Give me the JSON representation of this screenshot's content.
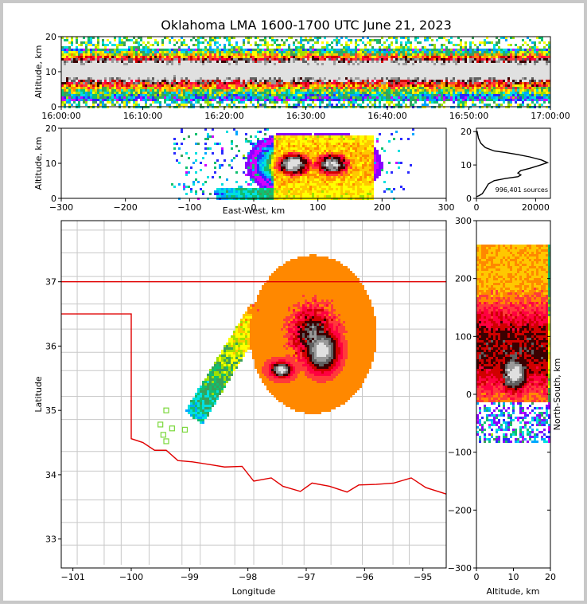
{
  "title": "Oklahoma LMA 1600-1700 UTC June 21, 2023",
  "colors": {
    "border": "#c8c8c8",
    "state_line": "#e00000",
    "county_line": "#c8c8c8",
    "station": "#7ad83a",
    "colormap": [
      "#8a00ff",
      "#d000ff",
      "#2a2aff",
      "#00a6ff",
      "#00e0e0",
      "#10c070",
      "#3aa05a",
      "#a0e000",
      "#ffff00",
      "#ffc800",
      "#ff8800",
      "#ff3a3a",
      "#ff0040",
      "#d00000",
      "#3a0000",
      "#606060",
      "#9a9a9a",
      "#e0e0e0"
    ]
  },
  "chart_data": [
    {
      "panel": "time-altitude",
      "type": "heatmap",
      "xlabel": "",
      "ylabel": "Altitude, km",
      "x_ticks": [
        "16:00:00",
        "16:10:00",
        "16:20:00",
        "16:30:00",
        "16:40:00",
        "16:50:00",
        "17:00:00"
      ],
      "y_ticks": [
        0,
        10,
        20
      ],
      "xlim": [
        "16:00:00",
        "17:00:00"
      ],
      "ylim": [
        0,
        20
      ],
      "peak_altitude_km": 11
    },
    {
      "panel": "east-west-altitude",
      "type": "heatmap",
      "xlabel": "East-West, km",
      "ylabel": "Altitude, km",
      "x_ticks": [
        -300,
        -200,
        -100,
        0,
        100,
        200,
        300
      ],
      "y_ticks": [
        0,
        10,
        20
      ],
      "xlim": [
        -300,
        300
      ],
      "ylim": [
        0,
        20
      ],
      "cores": [
        {
          "x_km": 60,
          "alt_km": 10
        },
        {
          "x_km": 120,
          "alt_km": 10
        }
      ]
    },
    {
      "panel": "altitude-histogram",
      "type": "line",
      "x_ticks": [
        0,
        20000
      ],
      "y_ticks": [
        0,
        10,
        20
      ],
      "xlim": [
        0,
        25000
      ],
      "ylim": [
        0,
        21
      ],
      "annotation": "996,401 sources",
      "points": [
        [
          0,
          0.5
        ],
        [
          900,
          0.8
        ],
        [
          2000,
          1.4
        ],
        [
          3000,
          2.8
        ],
        [
          4000,
          4.3
        ],
        [
          6000,
          5.3
        ],
        [
          10000,
          6.0
        ],
        [
          14000,
          6.5
        ],
        [
          15000,
          7.0
        ],
        [
          14000,
          7.6
        ],
        [
          15000,
          8.3
        ],
        [
          18000,
          9.0
        ],
        [
          21000,
          9.8
        ],
        [
          24000,
          10.7
        ],
        [
          22000,
          11.5
        ],
        [
          18000,
          12.4
        ],
        [
          14000,
          13.1
        ],
        [
          10000,
          13.7
        ],
        [
          6000,
          14.2
        ],
        [
          3000,
          15.2
        ],
        [
          1500,
          16.5
        ],
        [
          700,
          18.0
        ],
        [
          200,
          20.2
        ]
      ]
    },
    {
      "panel": "plan-view",
      "type": "heatmap",
      "xlabel": "Longitude",
      "ylabel": "Latitude",
      "x_ticks": [
        -101,
        -100,
        -99,
        -98,
        -97,
        -96,
        -95
      ],
      "y_ticks": [
        33,
        34,
        35,
        36,
        37
      ],
      "xlim": [
        -101.2,
        -94.6
      ],
      "ylim": [
        32.55,
        37.95
      ],
      "stations": [
        [
          -99.4,
          35.0
        ],
        [
          -99.5,
          34.78
        ],
        [
          -99.3,
          34.72
        ],
        [
          -99.08,
          34.7
        ],
        [
          -99.45,
          34.62
        ],
        [
          -99.4,
          34.52
        ]
      ]
    },
    {
      "panel": "north-south-altitude",
      "type": "heatmap",
      "xlabel": "Altitude, km",
      "ylabel": "North-South, km",
      "x_ticks": [
        0,
        10,
        20
      ],
      "y_ticks": [
        -300,
        -200,
        -100,
        0,
        100,
        200,
        300
      ],
      "xlim": [
        0,
        20
      ],
      "ylim": [
        -300,
        300
      ]
    }
  ]
}
